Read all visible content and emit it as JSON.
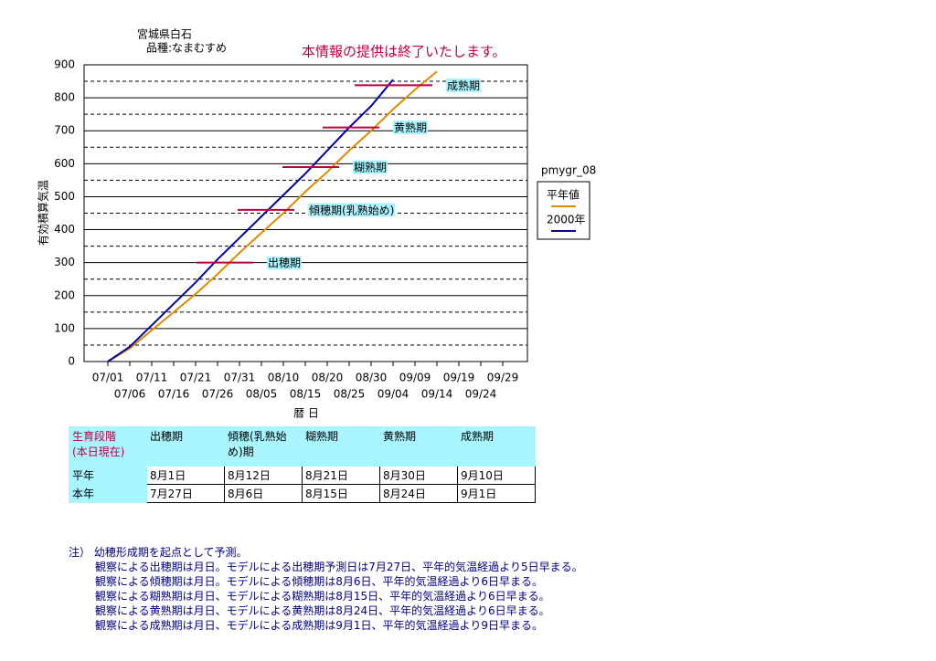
{
  "chart_data": {
    "type": "line",
    "title": "宮城県白石",
    "subtitle": "品種:なまむすめ",
    "notice": "本情報の提供は終了いたします。",
    "chart_id": "pmygr_08",
    "y_label": "有効積算気温",
    "x_label": "暦 日",
    "categories": [
      "07/01",
      "07/06",
      "07/11",
      "07/16",
      "07/21",
      "07/26",
      "07/31",
      "08/05",
      "08/10",
      "08/15",
      "08/20",
      "08/25",
      "08/30",
      "09/04",
      "09/09",
      "09/14",
      "09/19",
      "09/24",
      "09/29"
    ],
    "series": [
      {
        "name": "平年値",
        "color": "#e08a00",
        "values": [
          0,
          40,
          95,
          150,
          205,
          265,
          330,
          390,
          450,
          515,
          575,
          640,
          700,
          765,
          825,
          880,
          null,
          null,
          null
        ]
      },
      {
        "name": "2000年",
        "color": "#0000a0",
        "values": [
          0,
          45,
          110,
          175,
          240,
          310,
          375,
          440,
          505,
          570,
          640,
          710,
          775,
          855,
          null,
          null,
          null,
          null,
          null
        ]
      }
    ],
    "ylim": [
      0,
      900
    ],
    "yticks": [
      0,
      100,
      200,
      300,
      400,
      500,
      600,
      700,
      800,
      900
    ],
    "minor_grid": [
      50,
      150,
      250,
      350,
      450,
      550,
      650,
      750,
      850
    ],
    "grid": true,
    "annotations": [
      {
        "text": "出穂期",
        "value": 300
      },
      {
        "text": "傾穂期(乳熟始め)",
        "value": 460
      },
      {
        "text": "糊熟期",
        "value": 590
      },
      {
        "text": "黄熟期",
        "value": 710
      },
      {
        "text": "成熟期",
        "value": 838
      }
    ],
    "annotation_color": "#c00040"
  },
  "table": {
    "header": [
      "生育段階",
      "(本日現在)"
    ],
    "columns": [
      "出穂期",
      "傾穂(乳熟始め)期",
      "糊熟期",
      "黄熟期",
      "成熟期"
    ],
    "rows": [
      [
        "平年",
        "8月1日",
        "8月12日",
        "8月21日",
        "8月30日",
        "9月10日"
      ],
      [
        "本年",
        "7月27日",
        "8月6日",
        "8月15日",
        "8月24日",
        "9月1日"
      ]
    ]
  },
  "notes": [
    "注） 幼穂形成期を起点として予測。",
    "観察による出穂期は月日。モデルによる出穂期予測日は7月27日、平年的気温経過より5日早まる。",
    "観察による傾穂期は月日。モデルによる傾穂期は8月6日、平年的気温経過より6日早まる。",
    "観察による糊熟期は月日、モデルによる糊熟期は8月15日、平年的気温経過より6日早まる。",
    "観察による黄熟期は月日、モデルによる黄熟期は8月24日、平年的気温経過より6日早まる。",
    "観察による成熟期は月日、モデルによる成熟期は9月1日、平年的気温経過より9日早まる。"
  ]
}
